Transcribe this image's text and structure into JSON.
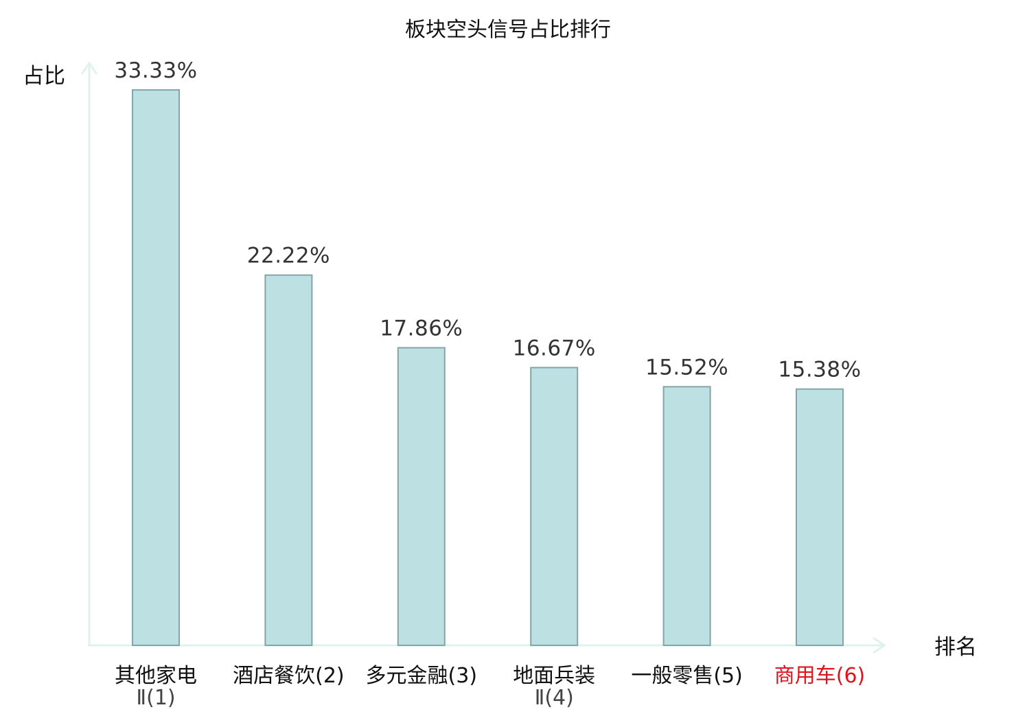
{
  "chart_data": {
    "type": "bar",
    "title": "板块空头信号占比排行",
    "xlabel": "排名",
    "ylabel": "占比",
    "categories": [
      {
        "name": "其他家电",
        "rank": "Ⅱ(1)",
        "label_lines": [
          "其他家电",
          "Ⅱ(1)"
        ],
        "highlight": false
      },
      {
        "name": "酒店餐饮",
        "rank": "(2)",
        "label_lines": [
          "酒店餐饮(2)"
        ],
        "highlight": false
      },
      {
        "name": "多元金融",
        "rank": "(3)",
        "label_lines": [
          "多元金融(3)"
        ],
        "highlight": false
      },
      {
        "name": "地面兵装",
        "rank": "Ⅱ(4)",
        "label_lines": [
          "地面兵装",
          "Ⅱ(4)"
        ],
        "highlight": false
      },
      {
        "name": "一般零售",
        "rank": "(5)",
        "label_lines": [
          "一般零售(5)"
        ],
        "highlight": false
      },
      {
        "name": "商用车",
        "rank": "(6)",
        "label_lines": [
          "商用车(6)"
        ],
        "highlight": true
      }
    ],
    "values": [
      33.33,
      22.22,
      17.86,
      16.67,
      15.52,
      15.38
    ],
    "value_labels": [
      "33.33%",
      "22.22%",
      "17.86%",
      "16.67%",
      "15.52%",
      "15.38%"
    ],
    "ylim": [
      0,
      33.33
    ],
    "grid": false,
    "legend": "none",
    "colors": {
      "bar_fill": "#bde0e3",
      "bar_stroke": "#84a5a8",
      "axis": "#dff2ee",
      "highlight_label": "#e0141c"
    }
  }
}
